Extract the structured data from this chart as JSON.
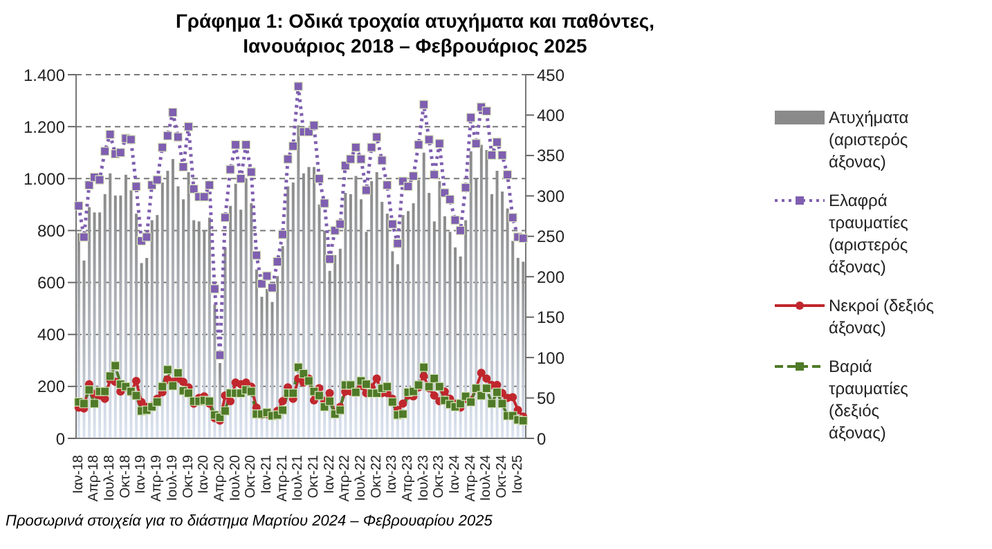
{
  "chart_data": {
    "type": "bar",
    "title": "Γράφημα 1: Οδικά τροχαία ατυχήματα και παθόντες,\nΙανουάριος 2018 – Φεβρουάριος 2025",
    "categories": [
      "Ιαν-18",
      null,
      null,
      "Απρ-18",
      null,
      null,
      "Ιουλ-18",
      null,
      null,
      "Οκτ-18",
      null,
      null,
      "Ιαν-19",
      null,
      null,
      "Απρ-19",
      null,
      null,
      "Ιουλ-19",
      null,
      null,
      "Οκτ-19",
      null,
      null,
      "Ιαν-20",
      null,
      null,
      "Απρ-20",
      null,
      null,
      "Ιουλ-20",
      null,
      null,
      "Οκτ-20",
      null,
      null,
      "Ιαν-21",
      null,
      null,
      "Απρ-21",
      null,
      null,
      "Ιουλ-21",
      null,
      null,
      "Οκτ-21",
      null,
      null,
      "Ιαν-22",
      null,
      null,
      "Απρ-22",
      null,
      null,
      "Ιουλ-22",
      null,
      null,
      "Οκτ-22",
      null,
      null,
      "Ιαν-23",
      null,
      null,
      "Απρ-23",
      null,
      null,
      "Ιουλ-23",
      null,
      null,
      "Οκτ-23",
      null,
      null,
      "Ιαν-24",
      null,
      null,
      "Απρ-24",
      null,
      null,
      "Ιουλ-24",
      null,
      null,
      "Οκτ-24",
      null,
      null,
      "Ιαν-25",
      null
    ],
    "series": [
      {
        "name": "Ατυχήματα (αριστερός άξονας)",
        "color": "#8a8a8a",
        "values": [
          790,
          685,
          890,
          870,
          870,
          940,
          1020,
          935,
          935,
          1015,
          955,
          865,
          675,
          695,
          840,
          860,
          985,
          1030,
          1075,
          970,
          920,
          1025,
          840,
          835,
          800,
          850,
          515,
          290,
          735,
          895,
          980,
          880,
          1000,
          905,
          650,
          545,
          575,
          525,
          625,
          740,
          970,
          985,
          1205,
          1020,
          1045,
          1045,
          900,
          800,
          645,
          705,
          730,
          945,
          940,
          1010,
          920,
          795,
          990,
          1025,
          910,
          865,
          720,
          670,
          860,
          875,
          905,
          995,
          1100,
          945,
          835,
          990,
          855,
          795,
          735,
          700,
          840,
          1105,
          1000,
          1130,
          1110,
          940,
          1030,
          950,
          885,
          760,
          695,
          680
        ]
      },
      {
        "name": "Ελαφρά τραυματίες (αριστερός άξονας)",
        "type": "line",
        "color": "#7f5fb0",
        "marker": "square",
        "line_style": "dotted",
        "values": [
          895,
          775,
          975,
          1005,
          995,
          1105,
          1170,
          1095,
          1100,
          1155,
          1150,
          970,
          760,
          775,
          975,
          995,
          1120,
          1165,
          1255,
          1160,
          1045,
          1200,
          960,
          930,
          930,
          975,
          575,
          320,
          850,
          1035,
          1130,
          1000,
          1130,
          1025,
          705,
          595,
          625,
          580,
          680,
          785,
          1075,
          1125,
          1355,
          1180,
          1180,
          1205,
          1000,
          905,
          690,
          800,
          825,
          1050,
          1075,
          1120,
          1075,
          955,
          1120,
          1160,
          1070,
          975,
          825,
          750,
          990,
          970,
          1010,
          1130,
          1285,
          1150,
          1015,
          1135,
          945,
          920,
          840,
          800,
          965,
          1235,
          1135,
          1275,
          1260,
          1090,
          1140,
          1090,
          1015,
          850,
          775,
          770
        ]
      },
      {
        "name": "Νεκροί (δεξιός άξονας)",
        "type": "line",
        "axis": "y2",
        "color": "#c0272d",
        "marker": "circle",
        "line_style": "solid",
        "values": [
          38,
          37,
          67,
          55,
          53,
          49,
          73,
          70,
          58,
          63,
          57,
          71,
          45,
          39,
          40,
          49,
          57,
          73,
          70,
          74,
          70,
          63,
          43,
          50,
          52,
          43,
          25,
          22,
          53,
          46,
          69,
          67,
          69,
          64,
          38,
          29,
          30,
          28,
          34,
          46,
          63,
          49,
          74,
          69,
          74,
          47,
          62,
          46,
          56,
          30,
          39,
          58,
          58,
          58,
          65,
          56,
          63,
          74,
          56,
          56,
          49,
          35,
          43,
          53,
          52,
          63,
          77,
          62,
          53,
          46,
          58,
          49,
          43,
          38,
          49,
          47,
          62,
          81,
          74,
          66,
          66,
          56,
          50,
          51,
          35,
          27
        ]
      },
      {
        "name": "Βαριά τραυματίες (δεξιός άξονας)",
        "type": "line",
        "axis": "y2",
        "color": "#4f7a28",
        "marker": "square",
        "line_style": "dashed",
        "values": [
          45,
          43,
          60,
          43,
          58,
          58,
          77,
          90,
          67,
          64,
          58,
          53,
          34,
          35,
          39,
          45,
          64,
          85,
          65,
          81,
          59,
          56,
          46,
          46,
          47,
          46,
          29,
          26,
          34,
          56,
          56,
          56,
          60,
          58,
          30,
          30,
          32,
          28,
          29,
          35,
          56,
          56,
          88,
          80,
          71,
          58,
          53,
          39,
          46,
          30,
          35,
          66,
          66,
          57,
          71,
          67,
          56,
          56,
          62,
          64,
          45,
          29,
          30,
          57,
          58,
          66,
          88,
          64,
          74,
          64,
          47,
          42,
          39,
          43,
          52,
          45,
          62,
          53,
          62,
          43,
          57,
          43,
          28,
          28,
          23,
          22
        ]
      }
    ],
    "ylim": [
      0,
      1400
    ],
    "yticks": [
      0,
      200,
      400,
      600,
      800,
      {
        "value": 1000,
        "label": "1.000"
      },
      {
        "value": 1200,
        "label": "1.200"
      },
      {
        "value": 1400,
        "label": "1.400"
      }
    ],
    "y2lim": [
      0,
      450
    ],
    "y2ticks": [
      0,
      50,
      100,
      150,
      200,
      250,
      300,
      350,
      400,
      450
    ],
    "grid": "y",
    "legend": "right",
    "annotations": [
      "Προσωρινά στοιχεία για το διάστημα Μαρτίου 2024 – Φεβρουαρίου 2025"
    ]
  }
}
